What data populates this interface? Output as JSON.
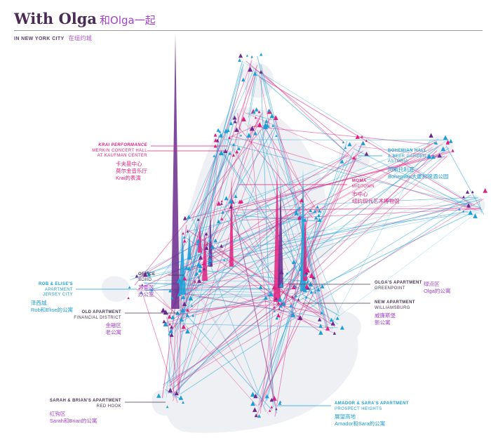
{
  "header": {
    "title": "With Olga",
    "title_zh": "和Olga一起",
    "subtitle": "IN NEW YORK CITY",
    "subtitle_zh": "在纽约城"
  },
  "labels": {
    "krai": {
      "bold": "KRAI PERFORMANCE",
      "l1": "MERKIN CONCERT HALL",
      "l2": "AT KAUFMAN CENTER",
      "zh1": "卡夫曼中心",
      "zh2": "莫尔金音乐厅",
      "zh3": "Krai的表演"
    },
    "bohemian": {
      "bold": "BOHEMIAN HALL",
      "l1": "& BEER GARDEN",
      "l2": "ASTORIA",
      "zh1": "阿斯托利亚",
      "zh2": "Bohemian大厦和啤酒公园"
    },
    "moma": {
      "bold": "MOMA",
      "l1": "MIDTOWN",
      "zh1": "市中心",
      "zh2": "纽约现代艺术博物馆"
    },
    "office": {
      "bold": "OFFICE",
      "l1": "SOHO",
      "zh1": "苏豪区",
      "zh2": "办公室"
    },
    "rob": {
      "bold": "ROB & ELISE'S",
      "l1": "APARTMENT",
      "l2": "JERSEY CITY",
      "zh1": "泽西城",
      "zh2": "Rob和Elise的公寓"
    },
    "old": {
      "bold": "OLD APARTMENT",
      "l1": "FINANCIAL DISTRICT",
      "zh1": "金融区",
      "zh2": "老公寓"
    },
    "olga": {
      "bold": "OLGA'S APARTMENT",
      "l1": "GREENPOINT",
      "zh1": "绿点区",
      "zh2": "Olga的公寓"
    },
    "newapt": {
      "bold": "NEW APARTMENT",
      "l1": "WILLIAMSBURG",
      "zh1": "威廉斯堡",
      "zh2": "新公寓"
    },
    "sarah": {
      "bold": "SARAH & BRIAN'S APARTMENT",
      "l1": "RED HOOK",
      "zh1": "红钩区",
      "zh2": "Sarah和Brian的公寓"
    },
    "amador": {
      "bold": "AMADOR & SARA'S APARTMENT",
      "l1": "PROSPECT HEIGHTS",
      "zh1": "展望高地",
      "zh2": "Amador和Sara的公寓"
    }
  },
  "colors": {
    "blue": "#1a9fd6",
    "pink": "#e0207f",
    "purple": "#6a2a8e",
    "land": "#eef0f4",
    "title": "#4a2b54"
  }
}
